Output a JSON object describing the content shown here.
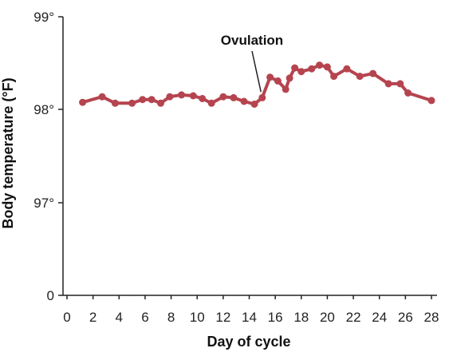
{
  "chart_data": {
    "type": "line",
    "xlabel": "Day of cycle",
    "ylabel": "Body temperature (°F)",
    "xlim": [
      0,
      28
    ],
    "x_ticks": [
      0,
      2,
      4,
      6,
      8,
      10,
      12,
      14,
      16,
      18,
      20,
      22,
      24,
      26,
      28
    ],
    "y_ticks": [
      {
        "label": "0",
        "level": 0
      },
      {
        "label": "97°",
        "level": 1
      },
      {
        "label": "98°",
        "level": 2
      },
      {
        "label": "99°",
        "level": 3
      }
    ],
    "series_color": "#b5444f",
    "series": [
      {
        "x": [
          1.2,
          2.7,
          3.7,
          5.0,
          5.8,
          6.5,
          7.2,
          7.9,
          8.8,
          9.7,
          10.4,
          11.1,
          12.0,
          12.8,
          13.6,
          14.4,
          15.0,
          15.6,
          16.2,
          16.8,
          17.1,
          17.5,
          18.0,
          18.8,
          19.4,
          20.0,
          20.5,
          21.5,
          22.5,
          23.5,
          24.7,
          25.6,
          26.2,
          28.0
        ],
        "y": [
          98.08,
          98.14,
          98.07,
          98.07,
          98.11,
          98.11,
          98.07,
          98.14,
          98.16,
          98.15,
          98.12,
          98.07,
          98.14,
          98.13,
          98.09,
          98.06,
          98.13,
          98.35,
          98.31,
          98.22,
          98.34,
          98.45,
          98.41,
          98.44,
          98.48,
          98.46,
          98.36,
          98.44,
          98.36,
          98.39,
          98.28,
          98.28,
          98.18,
          98.1
        ]
      }
    ],
    "annotation": {
      "text": "Ovulation",
      "x": 14.9,
      "y": 98.14
    }
  }
}
